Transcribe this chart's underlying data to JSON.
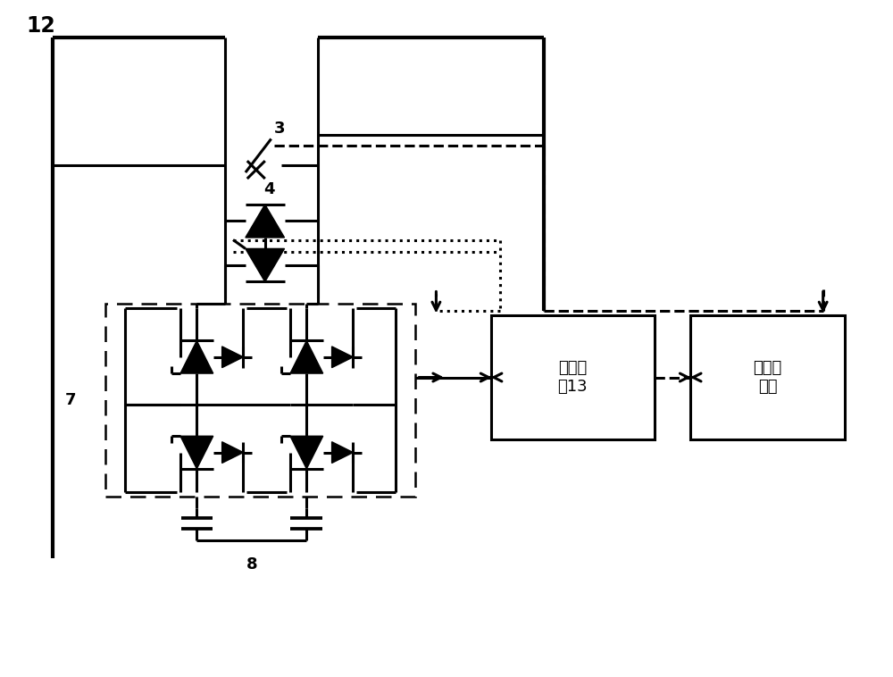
{
  "bg_color": "#ffffff",
  "lc": "#000000",
  "lw": 2.2,
  "lw_bus": 3.0,
  "fig_w": 10.0,
  "fig_h": 7.58,
  "label_12": "12",
  "label_3": "3",
  "label_4": "4",
  "label_7": "7",
  "label_8": "8",
  "label_ctrl": "主控制\n器13",
  "label_upper": "上层控\n制器"
}
